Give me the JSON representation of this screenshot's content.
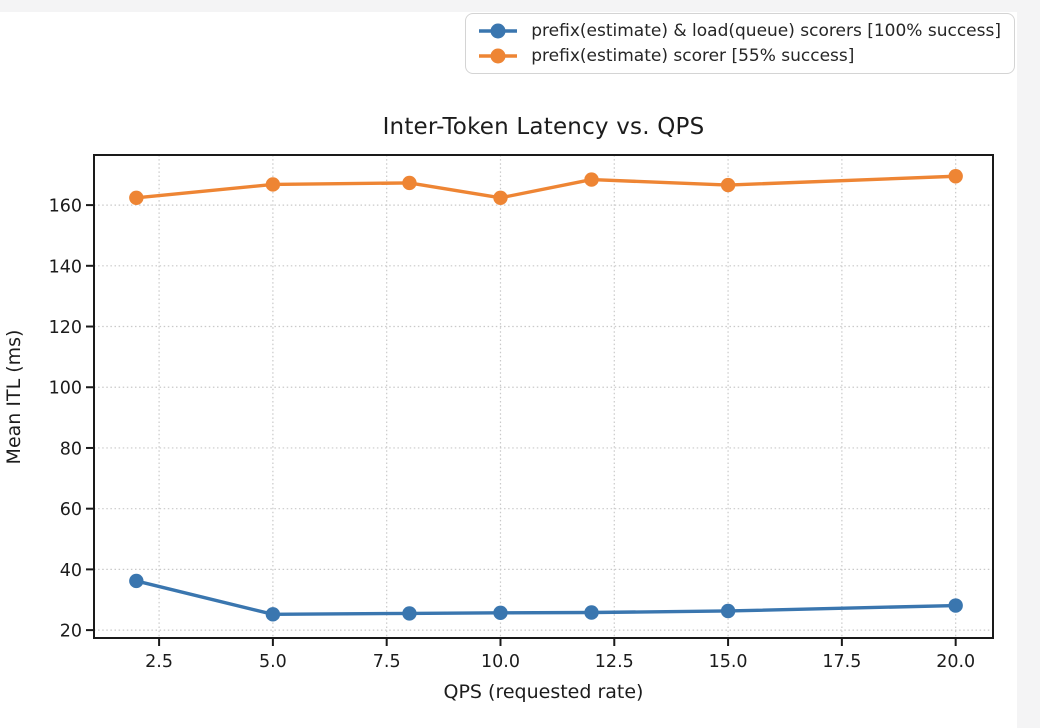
{
  "page": {
    "canvas_color": "#ffffff",
    "gutter_color": "#f4f4f5"
  },
  "chart_data": {
    "type": "line",
    "title": "Inter-Token Latency vs. QPS",
    "xlabel": "QPS (requested rate)",
    "ylabel": "Mean ITL (ms)",
    "x": [
      2,
      5,
      8,
      10,
      12,
      15,
      20
    ],
    "series": [
      {
        "name": "prefix(estimate) & load(queue) scorers [100% success]",
        "color": "#3A76AF",
        "values": [
          36.2,
          25.2,
          25.5,
          25.7,
          25.8,
          26.3,
          28.1
        ]
      },
      {
        "name": "prefix(estimate) scorer [55% success]",
        "color": "#EE8534",
        "values": [
          162.4,
          166.8,
          167.3,
          162.4,
          168.4,
          166.6,
          169.5
        ]
      }
    ],
    "xticks": {
      "values": [
        2.5,
        5,
        7.5,
        10,
        12.5,
        15,
        17.5,
        20
      ],
      "labels": [
        "2.5",
        "5.0",
        "7.5",
        "10.0",
        "12.5",
        "15.0",
        "17.5",
        "20.0"
      ]
    },
    "yticks": {
      "values": [
        20,
        40,
        60,
        80,
        100,
        120,
        140,
        160
      ],
      "labels": [
        "20",
        "40",
        "60",
        "80",
        "100",
        "120",
        "140",
        "160"
      ]
    },
    "xlim": [
      1.07,
      20.82
    ],
    "ylim": [
      17.4,
      176.5
    ],
    "grid": "dotted",
    "grid_color": "#c9c9c9",
    "spine_color": "#1a1a1a",
    "tick_label_color": "#1c1c1c",
    "legend_position": "upper-right-outside"
  },
  "legend": {
    "items": [
      {
        "label": "prefix(estimate) & load(queue) scorers [100% success]"
      },
      {
        "label": "prefix(estimate) scorer [55% success]"
      }
    ]
  }
}
